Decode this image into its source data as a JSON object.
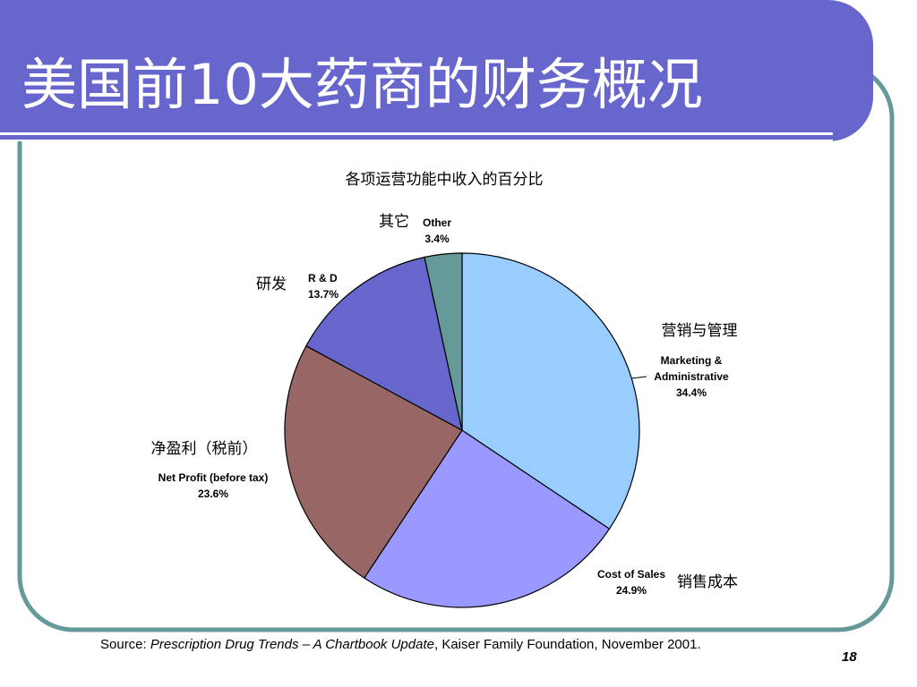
{
  "slide": {
    "title": "美国前10大药商的财务概况",
    "page_number": "18",
    "source": {
      "prefix": "Source: ",
      "publication": "Prescription Drug Trends – A Chartbook Update",
      "suffix": ", Kaiser Family Foundation, November 2001."
    }
  },
  "colors": {
    "title_bar": "#6666CC",
    "frame_border": "#669999"
  },
  "chart_data": {
    "type": "pie",
    "title": "各项运营功能中收入的百分比",
    "slices": [
      {
        "label_en": "Marketing & Administrative",
        "label_zh": "营销与管理",
        "value": 34.4,
        "value_label": "34.4%",
        "color": "#99CCFF"
      },
      {
        "label_en": "Cost of Sales",
        "label_zh": "销售成本",
        "value": 24.9,
        "value_label": "24.9%",
        "color": "#9999FF"
      },
      {
        "label_en": "Net Profit (before tax)",
        "label_zh": "净盈利（税前）",
        "value": 23.6,
        "value_label": "23.6%",
        "color": "#996666"
      },
      {
        "label_en": "R & D",
        "label_zh": "研发",
        "value": 13.7,
        "value_label": "13.7%",
        "color": "#6666CC"
      },
      {
        "label_en": "Other",
        "label_zh": "其它",
        "value": 3.4,
        "value_label": "3.4%",
        "color": "#669999"
      }
    ]
  }
}
